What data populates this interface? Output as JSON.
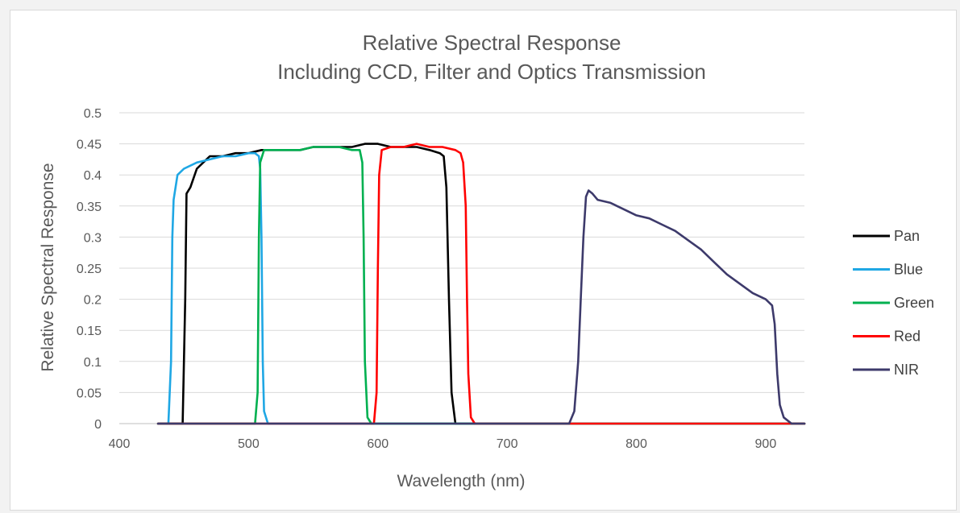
{
  "chart_data": {
    "type": "line",
    "title": "Relative Spectral Response",
    "subtitle": "Including CCD, Filter and Optics Transmission",
    "xlabel": "Wavelength (nm)",
    "ylabel": "Relative Spectral Response",
    "xlim": [
      400,
      930
    ],
    "ylim": [
      0,
      0.5
    ],
    "x_ticks": [
      "400",
      "500",
      "600",
      "700",
      "800",
      "900"
    ],
    "y_ticks": [
      "0",
      "0.05",
      "0.1",
      "0.15",
      "0.2",
      "0.25",
      "0.3",
      "0.35",
      "0.4",
      "0.45",
      "0.5"
    ],
    "grid": true,
    "legend_position": "right",
    "series": [
      {
        "name": "Pan",
        "color": "#000000",
        "points": [
          [
            430,
            0
          ],
          [
            449,
            0
          ],
          [
            451,
            0.2
          ],
          [
            452,
            0.37
          ],
          [
            455,
            0.38
          ],
          [
            460,
            0.41
          ],
          [
            470,
            0.43
          ],
          [
            480,
            0.43
          ],
          [
            490,
            0.435
          ],
          [
            500,
            0.435
          ],
          [
            510,
            0.44
          ],
          [
            520,
            0.44
          ],
          [
            530,
            0.44
          ],
          [
            540,
            0.44
          ],
          [
            550,
            0.445
          ],
          [
            560,
            0.445
          ],
          [
            570,
            0.445
          ],
          [
            580,
            0.445
          ],
          [
            590,
            0.45
          ],
          [
            600,
            0.45
          ],
          [
            610,
            0.445
          ],
          [
            620,
            0.445
          ],
          [
            630,
            0.445
          ],
          [
            640,
            0.44
          ],
          [
            648,
            0.435
          ],
          [
            651,
            0.43
          ],
          [
            653,
            0.38
          ],
          [
            655,
            0.2
          ],
          [
            657,
            0.05
          ],
          [
            660,
            0
          ],
          [
            930,
            0
          ]
        ]
      },
      {
        "name": "Blue",
        "color": "#1fa7e4",
        "points": [
          [
            430,
            0
          ],
          [
            438,
            0
          ],
          [
            440,
            0.1
          ],
          [
            441,
            0.3
          ],
          [
            442,
            0.36
          ],
          [
            445,
            0.4
          ],
          [
            450,
            0.41
          ],
          [
            460,
            0.42
          ],
          [
            470,
            0.425
          ],
          [
            480,
            0.43
          ],
          [
            490,
            0.43
          ],
          [
            500,
            0.435
          ],
          [
            505,
            0.435
          ],
          [
            508,
            0.43
          ],
          [
            509,
            0.41
          ],
          [
            510,
            0.3
          ],
          [
            511,
            0.1
          ],
          [
            512,
            0.02
          ],
          [
            515,
            0
          ],
          [
            930,
            0
          ]
        ]
      },
      {
        "name": "Green",
        "color": "#00b050",
        "points": [
          [
            430,
            0
          ],
          [
            505,
            0
          ],
          [
            507,
            0.05
          ],
          [
            508,
            0.3
          ],
          [
            509,
            0.42
          ],
          [
            512,
            0.44
          ],
          [
            520,
            0.44
          ],
          [
            530,
            0.44
          ],
          [
            540,
            0.44
          ],
          [
            550,
            0.445
          ],
          [
            560,
            0.445
          ],
          [
            570,
            0.445
          ],
          [
            580,
            0.44
          ],
          [
            586,
            0.44
          ],
          [
            588,
            0.42
          ],
          [
            589,
            0.3
          ],
          [
            590,
            0.1
          ],
          [
            592,
            0.01
          ],
          [
            595,
            0
          ],
          [
            930,
            0
          ]
        ]
      },
      {
        "name": "Red",
        "color": "#ff0000",
        "points": [
          [
            430,
            0
          ],
          [
            597,
            0
          ],
          [
            599,
            0.05
          ],
          [
            600,
            0.25
          ],
          [
            601,
            0.4
          ],
          [
            603,
            0.44
          ],
          [
            610,
            0.445
          ],
          [
            620,
            0.445
          ],
          [
            630,
            0.45
          ],
          [
            640,
            0.445
          ],
          [
            650,
            0.445
          ],
          [
            660,
            0.44
          ],
          [
            664,
            0.435
          ],
          [
            666,
            0.42
          ],
          [
            668,
            0.35
          ],
          [
            669,
            0.2
          ],
          [
            670,
            0.08
          ],
          [
            672,
            0.01
          ],
          [
            675,
            0
          ],
          [
            930,
            0
          ]
        ]
      },
      {
        "name": "NIR",
        "color": "#3d3a6b",
        "points": [
          [
            430,
            0
          ],
          [
            748,
            0
          ],
          [
            752,
            0.02
          ],
          [
            755,
            0.1
          ],
          [
            757,
            0.2
          ],
          [
            759,
            0.3
          ],
          [
            761,
            0.365
          ],
          [
            763,
            0.375
          ],
          [
            766,
            0.37
          ],
          [
            770,
            0.36
          ],
          [
            780,
            0.355
          ],
          [
            790,
            0.345
          ],
          [
            800,
            0.335
          ],
          [
            810,
            0.33
          ],
          [
            820,
            0.32
          ],
          [
            830,
            0.31
          ],
          [
            840,
            0.295
          ],
          [
            850,
            0.28
          ],
          [
            860,
            0.26
          ],
          [
            870,
            0.24
          ],
          [
            880,
            0.225
          ],
          [
            890,
            0.21
          ],
          [
            900,
            0.2
          ],
          [
            905,
            0.19
          ],
          [
            907,
            0.16
          ],
          [
            909,
            0.08
          ],
          [
            911,
            0.03
          ],
          [
            914,
            0.01
          ],
          [
            920,
            0
          ],
          [
            930,
            0
          ]
        ]
      }
    ]
  }
}
